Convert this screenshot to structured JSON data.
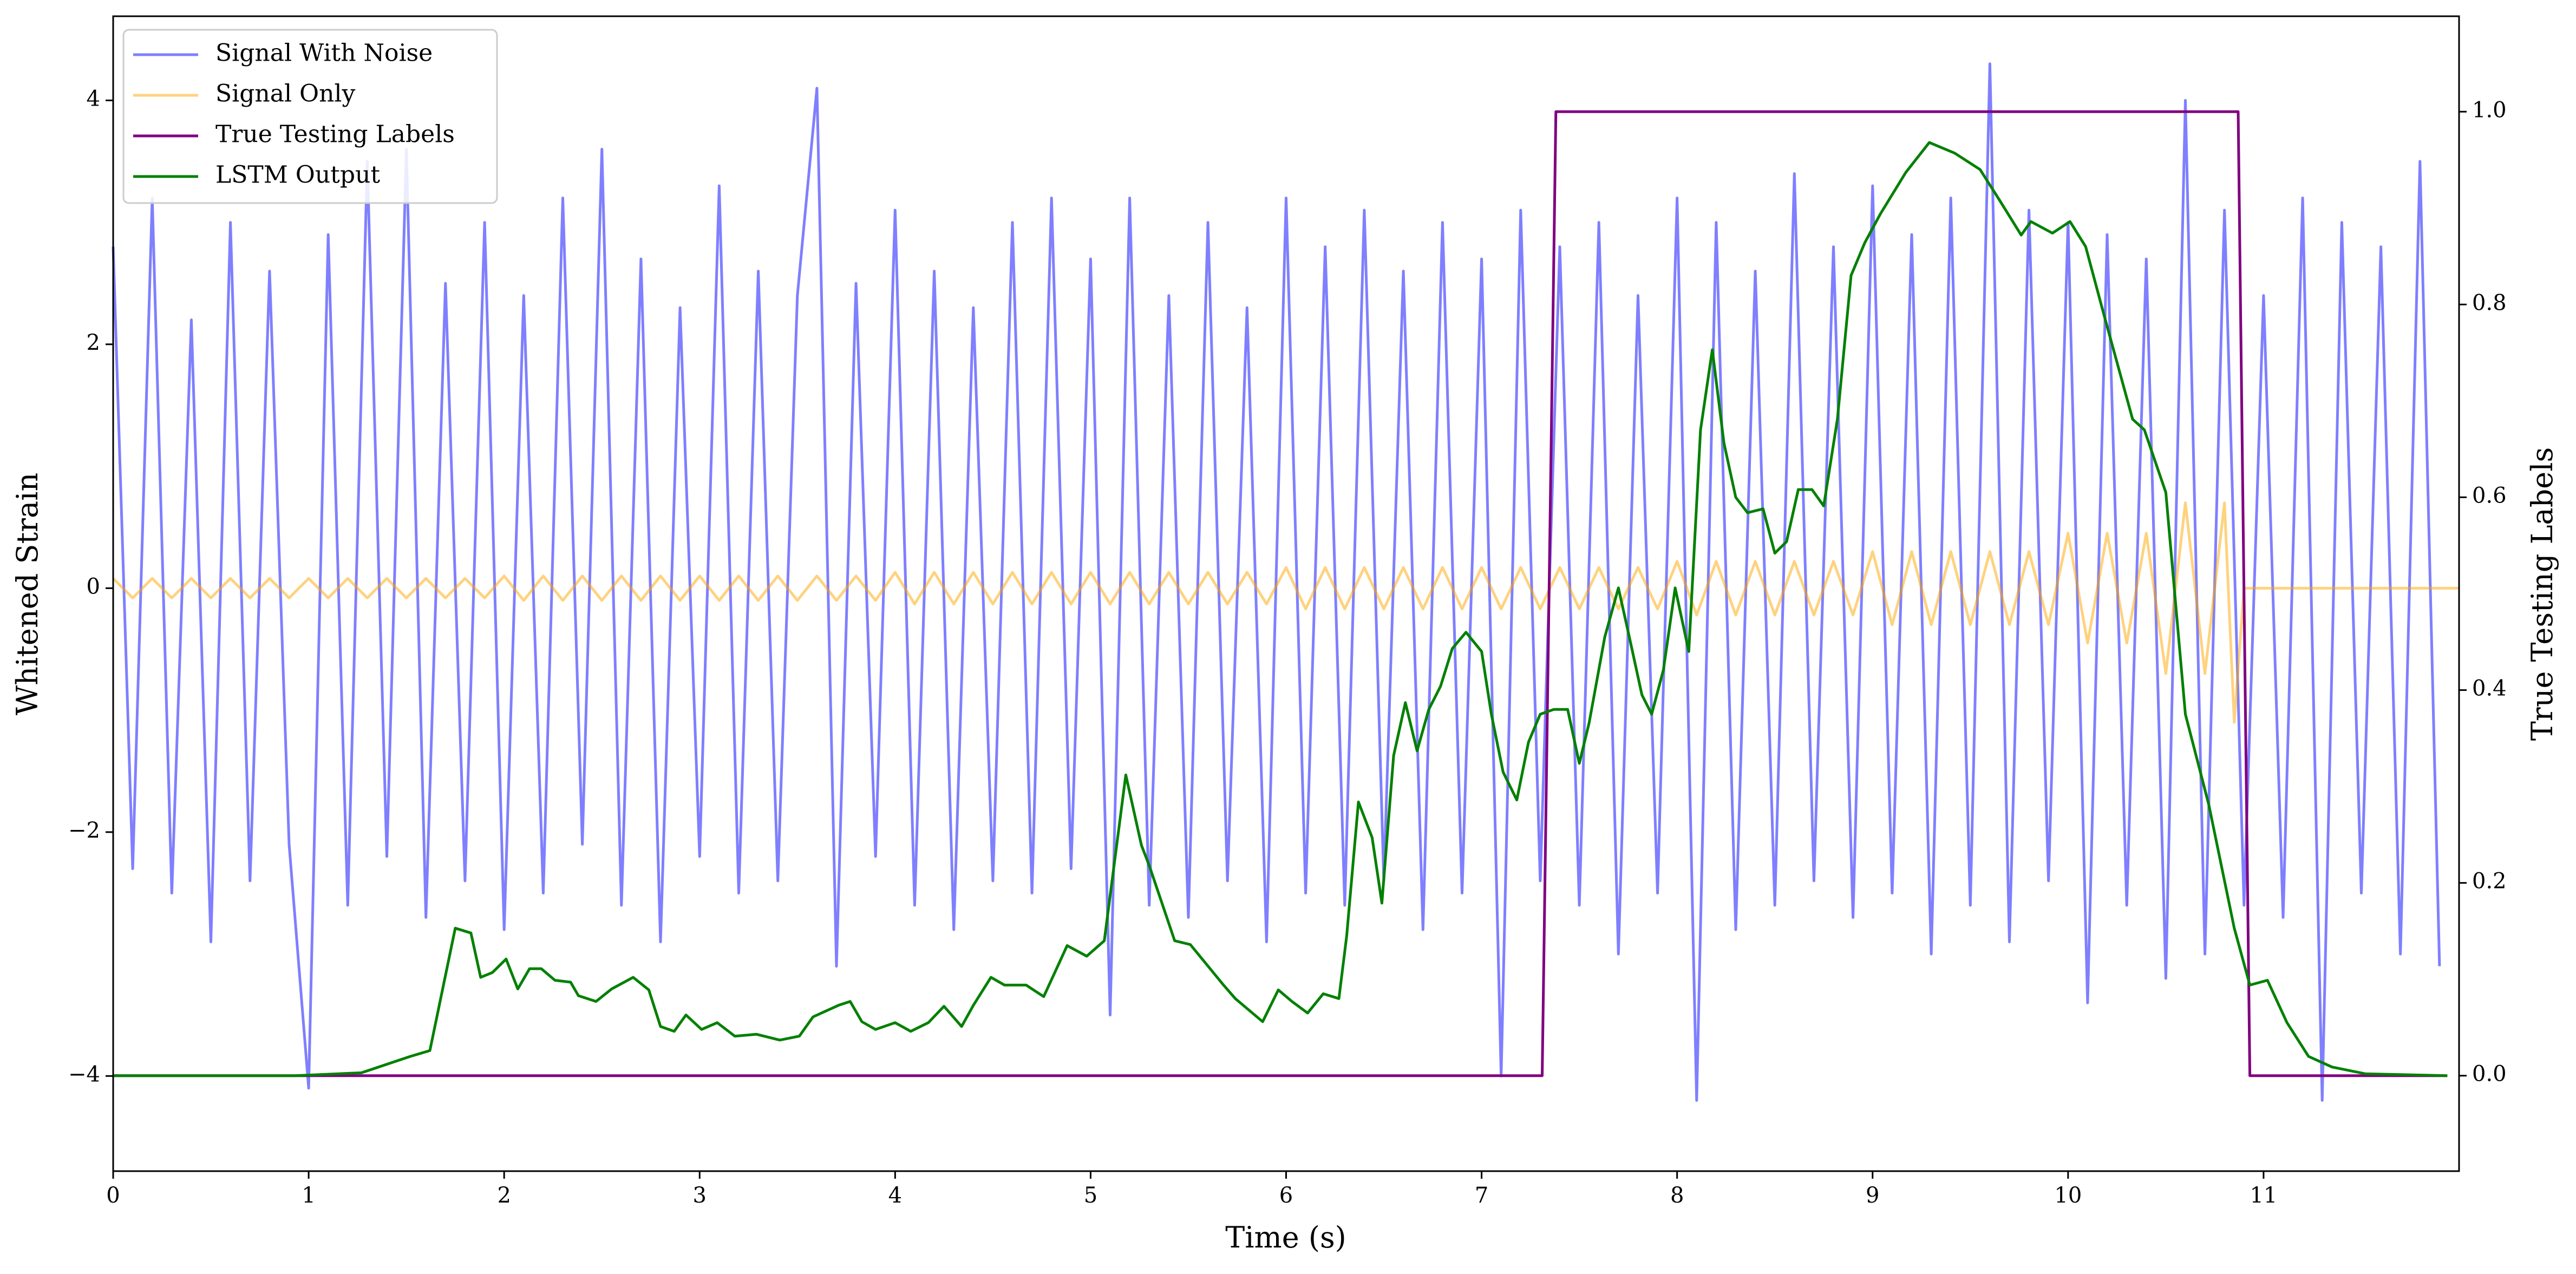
{
  "chart_data": {
    "type": "line",
    "xlabel": "Time (s)",
    "ylabel": "Whitened Strain",
    "y2label": "True Testing Labels",
    "xlim": [
      0,
      12
    ],
    "ylim": [
      -4.78,
      4.69
    ],
    "y2lim": [
      -0.099,
      1.099
    ],
    "xticks": [
      0,
      1,
      2,
      3,
      4,
      5,
      6,
      7,
      8,
      9,
      10,
      11
    ],
    "yticks": [
      {
        "value": -4,
        "label": "−4"
      },
      {
        "value": -2,
        "label": "−2"
      },
      0,
      2,
      4
    ],
    "y2ticks": [
      {
        "value": 0,
        "label": "0.0"
      },
      0.2,
      0.4,
      0.6,
      0.8,
      {
        "value": 1,
        "label": "1.0"
      }
    ],
    "legend": "upper left",
    "series": [
      {
        "name": "Signal With Noise",
        "color": "#0000ff",
        "opacity": 0.5,
        "x": [
          0,
          0.1,
          0.2,
          0.3,
          0.4,
          0.5,
          0.6,
          0.7,
          0.8,
          0.9,
          1,
          1.1,
          1.2,
          1.3,
          1.4,
          1.5,
          1.6,
          1.7,
          1.8,
          1.9,
          2,
          2.1,
          2.2,
          2.3,
          2.4,
          2.5,
          2.6,
          2.7,
          2.8,
          2.9,
          3,
          3.1,
          3.2,
          3.3,
          3.4,
          3.5,
          3.6,
          3.7,
          3.8,
          3.9,
          4,
          4.1,
          4.2,
          4.3,
          4.4,
          4.5,
          4.6,
          4.7,
          4.8,
          4.9,
          5,
          5.1,
          5.2,
          5.3,
          5.4,
          5.5,
          5.6,
          5.7,
          5.8,
          5.9,
          6,
          6.1,
          6.2,
          6.3,
          6.4,
          6.5,
          6.6,
          6.7,
          6.8,
          6.9,
          7,
          7.1,
          7.2,
          7.3,
          7.4,
          7.5,
          7.6,
          7.7,
          7.8,
          7.9,
          8,
          8.1,
          8.2,
          8.3,
          8.4,
          8.5,
          8.6,
          8.7,
          8.8,
          8.9,
          9,
          9.1,
          9.2,
          9.3,
          9.4,
          9.5,
          9.6,
          9.7,
          9.8,
          9.9,
          10,
          10.1,
          10.2,
          10.3,
          10.4,
          10.5,
          10.6,
          10.7,
          10.8,
          10.9,
          11,
          11.1,
          11.2,
          11.3,
          11.4,
          11.5,
          11.6,
          11.7,
          11.8,
          11.9
        ],
        "values": [
          2.8,
          -2.3,
          3.2,
          -2.5,
          2.2,
          -2.9,
          3.0,
          -2.4,
          2.6,
          -2.1,
          -4.1,
          2.9,
          -2.6,
          3.5,
          -2.2,
          3.6,
          -2.7,
          2.5,
          -2.4,
          3.0,
          -2.8,
          2.4,
          -2.5,
          3.2,
          -2.1,
          3.6,
          -2.6,
          2.7,
          -2.9,
          2.3,
          -2.2,
          3.3,
          -2.5,
          2.6,
          -2.4,
          2.4,
          4.1,
          -3.1,
          2.5,
          -2.2,
          3.1,
          -2.6,
          2.6,
          -2.8,
          2.3,
          -2.4,
          3.0,
          -2.5,
          3.2,
          -2.3,
          2.7,
          -3.5,
          3.2,
          -2.6,
          2.4,
          -2.7,
          3.0,
          -2.4,
          2.3,
          -2.9,
          3.2,
          -2.5,
          2.8,
          -2.6,
          3.1,
          -2.4,
          2.6,
          -2.8,
          3.0,
          -2.5,
          2.7,
          -4.0,
          3.1,
          -2.4,
          2.8,
          -2.6,
          3.0,
          -3.0,
          2.4,
          -2.5,
          3.2,
          -4.2,
          3.0,
          -2.8,
          2.6,
          -2.6,
          3.4,
          -2.4,
          2.8,
          -2.7,
          3.3,
          -2.5,
          2.9,
          -3.0,
          3.2,
          -2.6,
          4.3,
          -2.9,
          3.1,
          -2.4,
          3.0,
          -3.4,
          2.9,
          -2.6,
          2.7,
          -3.2,
          4.0,
          -3.0,
          3.1,
          -2.6,
          2.4,
          -2.7,
          3.2,
          -4.2,
          3.0,
          -2.5,
          2.8,
          -3.0,
          3.5,
          -3.1
        ]
      },
      {
        "name": "Signal Only",
        "color": "#ffa500",
        "opacity": 0.5,
        "x": [
          0,
          0.1,
          0.2,
          0.3,
          0.4,
          0.5,
          0.6,
          0.7,
          0.8,
          0.9,
          1,
          1.1,
          1.2,
          1.3,
          1.4,
          1.5,
          1.6,
          1.7,
          1.8,
          1.9,
          2,
          2.1,
          2.2,
          2.3,
          2.4,
          2.5,
          2.6,
          2.7,
          2.8,
          2.9,
          3,
          3.1,
          3.2,
          3.3,
          3.4,
          3.5,
          3.6,
          3.7,
          3.8,
          3.9,
          4,
          4.1,
          4.2,
          4.3,
          4.4,
          4.5,
          4.6,
          4.7,
          4.8,
          4.9,
          5,
          5.1,
          5.2,
          5.3,
          5.4,
          5.5,
          5.6,
          5.7,
          5.8,
          5.9,
          6,
          6.1,
          6.2,
          6.3,
          6.4,
          6.5,
          6.6,
          6.7,
          6.8,
          6.9,
          7,
          7.1,
          7.2,
          7.3,
          7.4,
          7.5,
          7.6,
          7.7,
          7.8,
          7.9,
          8,
          8.1,
          8.2,
          8.3,
          8.4,
          8.5,
          8.6,
          8.7,
          8.8,
          8.9,
          9,
          9.1,
          9.2,
          9.3,
          9.4,
          9.5,
          9.6,
          9.7,
          9.8,
          9.9,
          10,
          10.1,
          10.2,
          10.3,
          10.4,
          10.5,
          10.6,
          10.7,
          10.8,
          10.85,
          10.9,
          12
        ],
        "values": [
          0.08,
          -0.08,
          0.08,
          -0.08,
          0.08,
          -0.08,
          0.08,
          -0.08,
          0.08,
          -0.08,
          0.08,
          -0.08,
          0.08,
          -0.08,
          0.08,
          -0.08,
          0.08,
          -0.08,
          0.08,
          -0.08,
          0.1,
          -0.1,
          0.1,
          -0.1,
          0.1,
          -0.1,
          0.1,
          -0.1,
          0.1,
          -0.1,
          0.1,
          -0.1,
          0.1,
          -0.1,
          0.1,
          -0.1,
          0.1,
          -0.1,
          0.1,
          -0.1,
          0.13,
          -0.13,
          0.13,
          -0.13,
          0.13,
          -0.13,
          0.13,
          -0.13,
          0.13,
          -0.13,
          0.13,
          -0.13,
          0.13,
          -0.13,
          0.13,
          -0.13,
          0.13,
          -0.13,
          0.13,
          -0.13,
          0.17,
          -0.17,
          0.17,
          -0.17,
          0.17,
          -0.17,
          0.17,
          -0.17,
          0.17,
          -0.17,
          0.17,
          -0.17,
          0.17,
          -0.17,
          0.17,
          -0.17,
          0.17,
          -0.17,
          0.17,
          -0.17,
          0.22,
          -0.22,
          0.22,
          -0.22,
          0.22,
          -0.22,
          0.22,
          -0.22,
          0.22,
          -0.22,
          0.3,
          -0.3,
          0.3,
          -0.3,
          0.3,
          -0.3,
          0.3,
          -0.3,
          0.3,
          -0.3,
          0.45,
          -0.45,
          0.45,
          -0.45,
          0.45,
          -0.7,
          0.7,
          -0.7,
          0.7,
          -1.1,
          0,
          0
        ]
      },
      {
        "name": "True Testing Labels",
        "color": "#800080",
        "axis": "y2",
        "x": [
          0,
          7.31,
          7.38,
          10.87,
          10.93,
          11.94
        ],
        "values": [
          0,
          0,
          1,
          1,
          0,
          0
        ]
      },
      {
        "name": "LSTM Output",
        "color": "#008000",
        "axis": "y2",
        "x": [
          0,
          0.93,
          1.27,
          1.52,
          1.62,
          1.75,
          1.83,
          1.88,
          1.94,
          2.01,
          2.07,
          2.13,
          2.19,
          2.26,
          2.34,
          2.38,
          2.47,
          2.55,
          2.66,
          2.74,
          2.8,
          2.87,
          2.93,
          3.01,
          3.09,
          3.18,
          3.29,
          3.41,
          3.51,
          3.58,
          3.71,
          3.77,
          3.83,
          3.9,
          4,
          4.08,
          4.17,
          4.25,
          4.34,
          4.4,
          4.49,
          4.56,
          4.67,
          4.76,
          4.88,
          4.98,
          5.07,
          5.18,
          5.26,
          5.3,
          5.43,
          5.51,
          5.68,
          5.74,
          5.88,
          5.96,
          6.03,
          6.11,
          6.19,
          6.27,
          6.31,
          6.37,
          6.44,
          6.49,
          6.55,
          6.61,
          6.67,
          6.73,
          6.79,
          6.85,
          6.92,
          7,
          7.05,
          7.11,
          7.18,
          7.24,
          7.3,
          7.37,
          7.44,
          7.5,
          7.55,
          7.63,
          7.7,
          7.76,
          7.82,
          7.87,
          7.93,
          7.99,
          8.06,
          8.12,
          8.18,
          8.24,
          8.3,
          8.36,
          8.44,
          8.5,
          8.56,
          8.62,
          8.69,
          8.75,
          8.82,
          8.89,
          8.96,
          9.04,
          9.17,
          9.29,
          9.42,
          9.55,
          9.65,
          9.76,
          9.81,
          9.92,
          10.01,
          10.09,
          10.18,
          10.33,
          10.39,
          10.5,
          10.6,
          10.72,
          10.85,
          10.93,
          11.02,
          11.12,
          11.23,
          11.35,
          11.52,
          11.94
        ],
        "values": [
          0,
          0,
          0.003,
          0.02,
          0.026,
          0.153,
          0.148,
          0.102,
          0.107,
          0.121,
          0.09,
          0.111,
          0.111,
          0.099,
          0.097,
          0.083,
          0.077,
          0.09,
          0.102,
          0.089,
          0.051,
          0.046,
          0.063,
          0.048,
          0.055,
          0.041,
          0.043,
          0.037,
          0.041,
          0.061,
          0.073,
          0.077,
          0.056,
          0.048,
          0.055,
          0.046,
          0.055,
          0.072,
          0.051,
          0.073,
          0.102,
          0.094,
          0.094,
          0.082,
          0.135,
          0.124,
          0.14,
          0.312,
          0.239,
          0.218,
          0.14,
          0.136,
          0.094,
          0.08,
          0.056,
          0.089,
          0.077,
          0.065,
          0.085,
          0.08,
          0.145,
          0.284,
          0.247,
          0.179,
          0.332,
          0.387,
          0.337,
          0.38,
          0.404,
          0.443,
          0.46,
          0.44,
          0.375,
          0.315,
          0.286,
          0.346,
          0.375,
          0.38,
          0.38,
          0.324,
          0.366,
          0.455,
          0.506,
          0.451,
          0.395,
          0.375,
          0.421,
          0.506,
          0.44,
          0.67,
          0.753,
          0.656,
          0.6,
          0.584,
          0.588,
          0.542,
          0.554,
          0.608,
          0.608,
          0.591,
          0.681,
          0.83,
          0.864,
          0.894,
          0.937,
          0.968,
          0.957,
          0.94,
          0.908,
          0.872,
          0.886,
          0.874,
          0.886,
          0.86,
          0.792,
          0.681,
          0.67,
          0.605,
          0.375,
          0.281,
          0.153,
          0.094,
          0.099,
          0.055,
          0.02,
          0.009,
          0.002,
          0
        ]
      }
    ]
  }
}
